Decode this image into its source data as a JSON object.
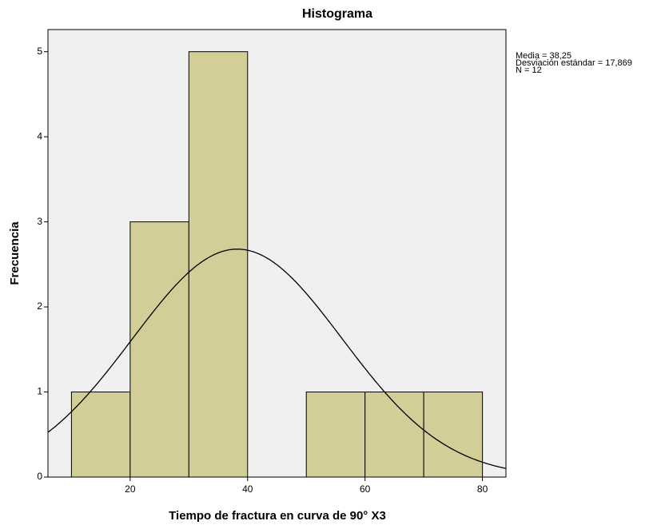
{
  "chart_data": {
    "type": "histogram",
    "title": "Histograma",
    "x_label": "Tiempo de fractura en curva de 90° X3",
    "y_label": "Frecuencia",
    "bins": [
      10,
      20,
      30,
      40,
      50,
      60,
      70,
      80
    ],
    "values": [
      1,
      3,
      5,
      0,
      1,
      1,
      1
    ],
    "color": "#d3ce97",
    "edge_color": "#000000",
    "plot_background": "#f0f0f0",
    "xlim": [
      6,
      84
    ],
    "ylim": [
      0,
      5.26
    ],
    "xticks": [
      20,
      40,
      60,
      80
    ],
    "yticks": [
      0,
      1,
      2,
      3,
      4,
      5
    ],
    "stats": {
      "mean": {
        "value": 38.25,
        "label": "Media = 38,25"
      },
      "sd": {
        "value": 17.869,
        "label": "Desviación estándar = 17,869"
      },
      "n": {
        "value": 12,
        "label": "N = 12"
      }
    }
  }
}
